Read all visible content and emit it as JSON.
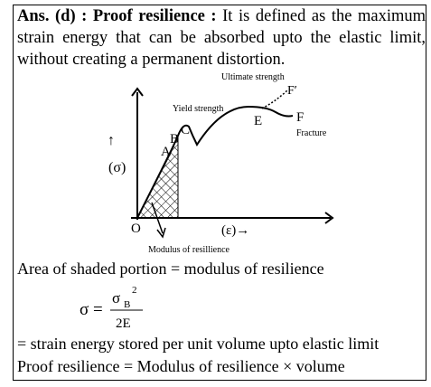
{
  "answer": {
    "heading": "Ans. (d) : Proof resilience :",
    "text": "It is defined as the maximum strain energy that can be absorbed upto the elastic limit, without creating a permanent distortion."
  },
  "diagram": {
    "ultimate": "Ultimate strength",
    "f_prime": "F′",
    "yield": "Yield strength",
    "e": "E",
    "f": "F",
    "fracture": "Fracture",
    "b": "B",
    "c": "C",
    "a": "A",
    "up_arrow": "↑",
    "sigma": "(σ)",
    "o": "O",
    "epsilon": "(ε)→",
    "modulus": "Modulus of resillience"
  },
  "formula": {
    "lhs": "σ =",
    "numerator": "σ",
    "subscript": "B",
    "exponent": "2",
    "denominator": "2E"
  },
  "lines": [
    "Area of shaded portion = modulus of resilience",
    "= strain energy stored per unit volume upto elastic limit",
    "Proof resilience = Modulus of resilience × volume"
  ]
}
